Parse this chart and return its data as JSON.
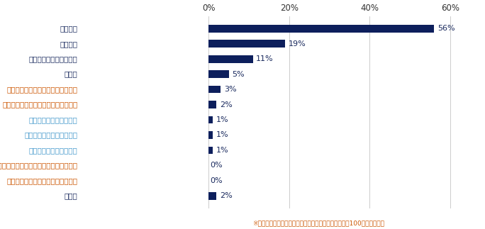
{
  "categories": [
    "業務経験",
    "専門知識",
    "コミュニケーション能力",
    "技術力",
    "リーダーシップ（統率力、調整力）",
    "定義化（本質をつかみ言葉で表わす）",
    "クリティカルシンキング",
    "ファシリテーションスキル",
    "ネゴシエーションスキル",
    "モデル化（仕組みを単純化して図に表わす）",
    "類推（核心をとらえ他に適用する）",
    "その他"
  ],
  "label_colors": [
    "#1a2a5e",
    "#1a2a5e",
    "#1a2a5e",
    "#1a2a5e",
    "#cc5500",
    "#cc5500",
    "#4499cc",
    "#4499cc",
    "#4499cc",
    "#cc5500",
    "#cc5500",
    "#1a2a5e"
  ],
  "values": [
    56,
    19,
    11,
    5,
    3,
    2,
    1,
    1,
    1,
    0,
    0,
    2
  ],
  "labels": [
    "56%",
    "19%",
    "11%",
    "5%",
    "3%",
    "2%",
    "1%",
    "1%",
    "1%",
    "0%",
    "0%",
    "2%"
  ],
  "bar_color": "#0d1f5c",
  "value_label_color": "#1a2a5e",
  "xlim": [
    0,
    65
  ],
  "xticks": [
    0,
    20,
    40,
    60
  ],
  "xticklabels": [
    "0%",
    "20%",
    "40%",
    "60%"
  ],
  "note": "※小数点以下を四捨五入しているため、必ずしも合計が100にならない。",
  "note_color": "#cc5500",
  "background_color": "#ffffff",
  "figsize": [
    6.84,
    3.23
  ],
  "dpi": 100
}
